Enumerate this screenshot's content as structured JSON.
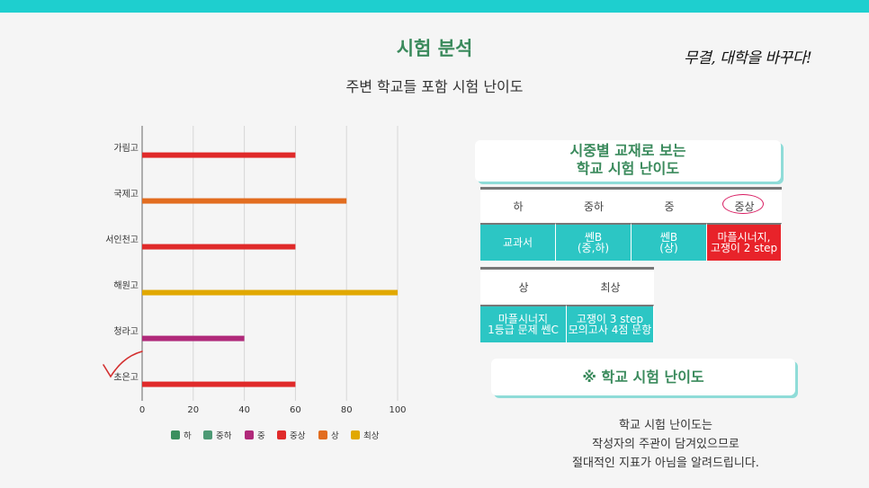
{
  "title": "시험 분석",
  "subtitle": "주변 학교들 포함 시험 난이도",
  "slogan": "무결, 대학을 바꾸다!",
  "chart_data": {
    "type": "bar",
    "orientation": "horizontal",
    "categories": [
      "가림고",
      "국제고",
      "서인천고",
      "해원고",
      "청라고",
      "초은고"
    ],
    "values": [
      60,
      80,
      60,
      100,
      40,
      60
    ],
    "value_levels": [
      "중상",
      "상",
      "중상",
      "최상",
      "중",
      "중상"
    ],
    "xlim": [
      0,
      100
    ],
    "xticks": [
      "0",
      "20",
      "40",
      "60",
      "80",
      "100"
    ],
    "grid": true,
    "legend_position": "bottom",
    "legend": [
      {
        "label": "하",
        "color": "#3c8f5e"
      },
      {
        "label": "중하",
        "color": "#4d9a75"
      },
      {
        "label": "중",
        "color": "#b0297a"
      },
      {
        "label": "중상",
        "color": "#e02a2a"
      },
      {
        "label": "상",
        "color": "#e26d20"
      },
      {
        "label": "최상",
        "color": "#e1a800"
      }
    ]
  },
  "card1": {
    "line1": "시중별 교재로 보는",
    "line2": "학교 시험 난이도"
  },
  "table1": {
    "headers": [
      "하",
      "중하",
      "중",
      "중상"
    ],
    "values": [
      [
        "교과서"
      ],
      [
        "쎈B",
        "(중,하)"
      ],
      [
        "쎈B",
        "(상)"
      ],
      [
        "마플시너지,",
        "고쟁이 2 step"
      ]
    ]
  },
  "table2": {
    "headers": [
      "상",
      "최상"
    ],
    "values": [
      [
        "마플시너지",
        "1등급 문제 쎈C"
      ],
      [
        "고쟁이 3 step",
        "모의고사 4점 문항"
      ]
    ]
  },
  "card2": "※ 학교 시험 난이도",
  "note": [
    "학교 시험 난이도는",
    "작성자의 주관이 담겨있으므로",
    "절대적인 지표가 아님을 알려드립니다."
  ],
  "colors": {
    "accent": "#1ecfcf",
    "title_green": "#3a8a5c",
    "cell_teal": "#2cc6c4",
    "cell_red": "#e8232a"
  }
}
